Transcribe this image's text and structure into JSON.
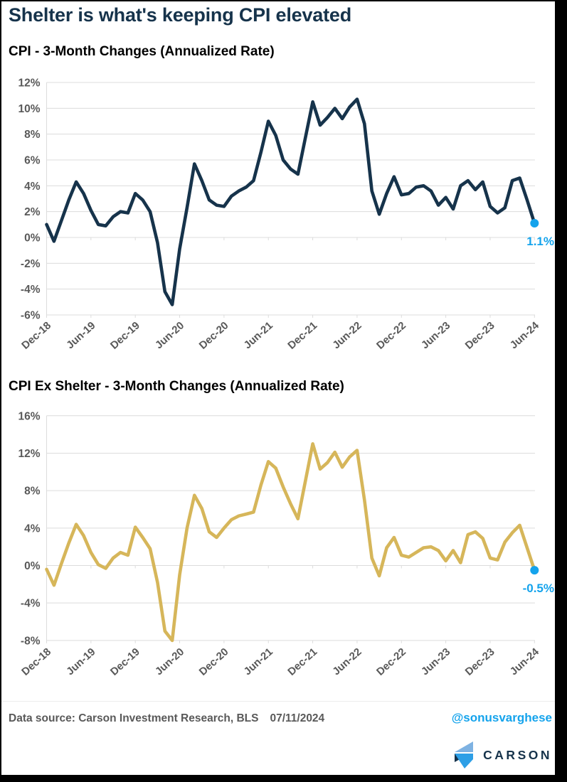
{
  "header": {
    "title": "Shelter is what's keeping CPI elevated"
  },
  "colors": {
    "navy": "#16334B",
    "gold": "#D6B65A",
    "accent_blue": "#14A3EC",
    "axis_text": "#595959",
    "grid": "#DCDCDC",
    "logo_light_blue": "#7EB2E2",
    "logo_bright_blue": "#2D9FE6"
  },
  "chart_data": [
    {
      "type": "line",
      "title": "CPI - 3-Month Changes (Annualized Rate)",
      "x_frequency": "monthly",
      "x_range": [
        "Dec-18",
        "Jun-24"
      ],
      "x_tick_labels": [
        "Dec-18",
        "Jun-19",
        "Dec-19",
        "Jun-20",
        "Dec-20",
        "Jun-21",
        "Dec-21",
        "Jun-22",
        "Dec-22",
        "Jun-23",
        "Dec-23",
        "Jun-24"
      ],
      "ylim": [
        -6,
        12
      ],
      "ytick_step": 2,
      "ytick_labels": [
        "12%",
        "10%",
        "8%",
        "6%",
        "4%",
        "2%",
        "0%",
        "-2%",
        "-4%",
        "-6%"
      ],
      "grid": "horizontal",
      "legend": "none",
      "line_color": "#16334B",
      "last_point": {
        "label": "1.1%",
        "value": 1.1,
        "marker_color": "#14A3EC"
      },
      "values": [
        1.0,
        -0.3,
        1.3,
        2.9,
        4.3,
        3.4,
        2.1,
        1.0,
        0.9,
        1.6,
        2.0,
        1.9,
        3.4,
        2.9,
        2.0,
        -0.4,
        -4.2,
        -5.2,
        -0.9,
        2.3,
        5.7,
        4.4,
        2.9,
        2.5,
        2.4,
        3.2,
        3.6,
        3.9,
        4.4,
        6.6,
        9.0,
        7.9,
        6.0,
        5.3,
        4.9,
        7.7,
        10.5,
        8.7,
        9.3,
        10.0,
        9.2,
        10.1,
        10.7,
        8.8,
        3.6,
        1.8,
        3.4,
        4.7,
        3.3,
        3.4,
        3.9,
        4.0,
        3.6,
        2.5,
        3.1,
        2.2,
        4.0,
        4.4,
        3.7,
        4.3,
        2.4,
        1.9,
        2.3,
        4.4,
        4.6,
        2.9,
        1.1
      ]
    },
    {
      "type": "line",
      "title": "CPI Ex Shelter - 3-Month Changes (Annualized Rate)",
      "x_frequency": "monthly",
      "x_range": [
        "Dec-18",
        "Jun-24"
      ],
      "x_tick_labels": [
        "Dec-18",
        "Jun-19",
        "Dec-19",
        "Jun-20",
        "Dec-20",
        "Jun-21",
        "Dec-21",
        "Jun-22",
        "Dec-22",
        "Jun-23",
        "Dec-23",
        "Jun-24"
      ],
      "ylim": [
        -8,
        16
      ],
      "ytick_step": 4,
      "ytick_labels": [
        "16%",
        "12%",
        "8%",
        "4%",
        "0%",
        "-4%",
        "-8%"
      ],
      "grid": "horizontal",
      "legend": "none",
      "line_color": "#D6B65A",
      "last_point": {
        "label": "-0.5%",
        "value": -0.5,
        "marker_color": "#14A3EC"
      },
      "values": [
        -0.4,
        -2.1,
        0.2,
        2.4,
        4.4,
        3.2,
        1.4,
        0.1,
        -0.3,
        0.8,
        1.4,
        1.1,
        4.1,
        3.0,
        1.8,
        -1.8,
        -7.0,
        -8.0,
        -1.0,
        4.0,
        7.5,
        6.1,
        3.6,
        3.0,
        4.0,
        4.9,
        5.3,
        5.5,
        5.7,
        8.6,
        11.1,
        10.4,
        8.4,
        6.6,
        5.0,
        9.0,
        13.0,
        10.3,
        11.0,
        12.1,
        10.5,
        11.6,
        12.3,
        7.0,
        0.8,
        -1.1,
        1.9,
        3.0,
        1.1,
        0.9,
        1.4,
        1.9,
        2.0,
        1.6,
        0.5,
        1.6,
        0.3,
        3.3,
        3.6,
        2.9,
        0.8,
        0.6,
        2.5,
        3.5,
        4.3,
        1.9,
        -0.5
      ]
    }
  ],
  "footer": {
    "source": "Data source: Carson Investment Research, BLS",
    "date": "07/11/2024",
    "handle": "@sonusvarghese",
    "logo_text": "CARSON"
  }
}
